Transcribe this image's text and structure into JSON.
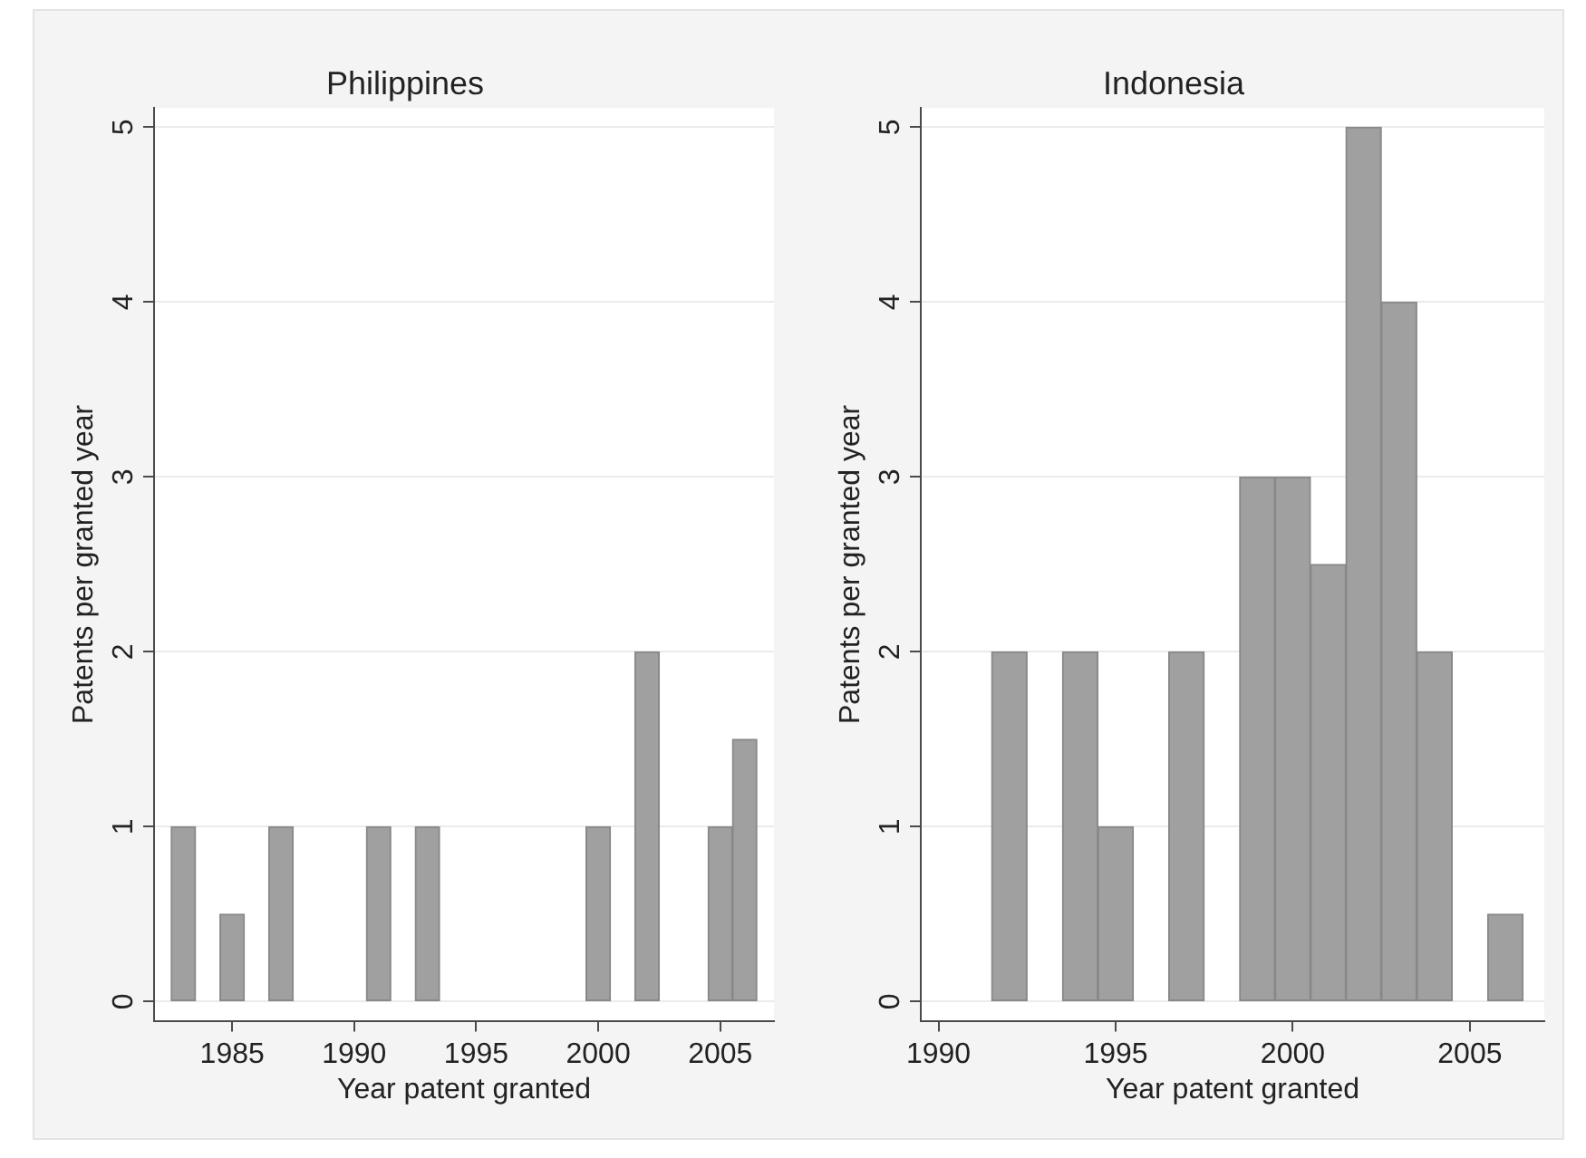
{
  "chart_data": [
    {
      "type": "bar",
      "title": "Philippines",
      "xlabel": "Year patent granted",
      "ylabel": "Patents per granted year",
      "x": [
        1983,
        1985,
        1987,
        1991,
        1993,
        2000,
        2002,
        2005,
        2006
      ],
      "values": [
        1,
        0.5,
        1,
        1,
        1,
        1,
        2,
        1,
        1.5
      ],
      "color": "#a0a0a0",
      "xlim": [
        1981.8,
        2007.2
      ],
      "xticks": [
        1985,
        1990,
        1995,
        2000,
        2005
      ],
      "ylim": [
        -0.11,
        5.11
      ],
      "yticks": [
        0,
        1,
        2,
        3,
        4,
        5
      ],
      "grid": "y"
    },
    {
      "type": "bar",
      "title": "Indonesia",
      "xlabel": "Year patent granted",
      "ylabel": "Patents per granted year",
      "x": [
        1992,
        1994,
        1995,
        1997,
        1999,
        2000,
        2001,
        2002,
        2003,
        2004,
        2006
      ],
      "values": [
        2,
        2,
        1,
        2,
        3,
        3,
        2.5,
        5,
        4,
        2,
        0.5
      ],
      "color": "#a0a0a0",
      "xlim": [
        1989.5,
        2007.1
      ],
      "xticks": [
        1990,
        1995,
        2000,
        2005
      ],
      "ylim": [
        -0.11,
        5.11
      ],
      "yticks": [
        0,
        1,
        2,
        3,
        4,
        5
      ],
      "grid": "y"
    }
  ]
}
